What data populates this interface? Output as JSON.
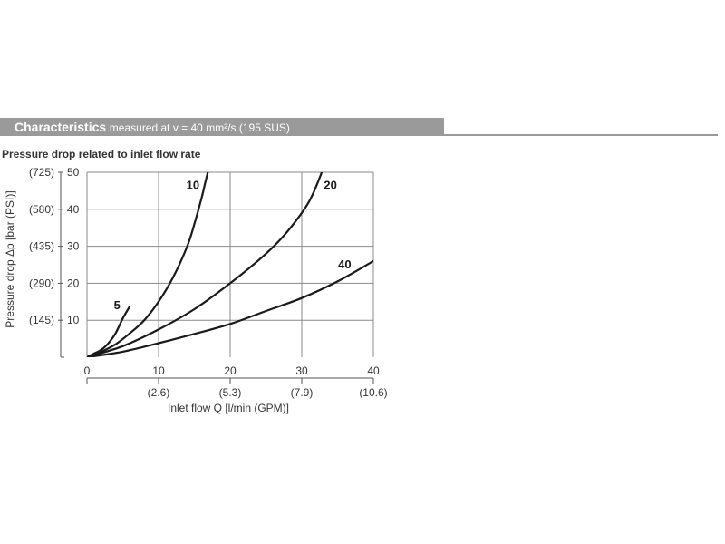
{
  "header": {
    "title": "Characteristics",
    "subtitle": "measured at v = 40 mm²/s (195 SUS)"
  },
  "chart_data": {
    "type": "line",
    "title": "Pressure drop related to inlet flow rate",
    "xlabel": "Inlet flow Q [l/min (GPM)]",
    "ylabel": "Pressure drop Δp [bar (PSI)]",
    "xlim": [
      0,
      40
    ],
    "ylim": [
      0,
      50
    ],
    "grid": true,
    "x_ticks": [
      "0",
      "10",
      "20",
      "30",
      "40"
    ],
    "x_ticks_secondary": [
      "(2.6)",
      "(5.3)",
      "(7.9)",
      "(10.6)"
    ],
    "y_ticks": [
      "10",
      "20",
      "30",
      "40",
      "50"
    ],
    "y_ticks_secondary": [
      "(145)",
      "(290)",
      "(435)",
      "(580)",
      "(725)"
    ],
    "series": [
      {
        "name": "5",
        "points": [
          [
            0,
            0
          ],
          [
            1,
            1
          ],
          [
            2,
            2
          ],
          [
            3,
            3.8
          ],
          [
            4,
            6.5
          ],
          [
            5,
            10.5
          ],
          [
            5.9,
            13.5
          ]
        ]
      },
      {
        "name": "10",
        "points": [
          [
            0,
            0
          ],
          [
            2,
            1.5
          ],
          [
            4,
            3.5
          ],
          [
            6,
            6.5
          ],
          [
            8,
            10
          ],
          [
            10,
            15
          ],
          [
            12,
            21.5
          ],
          [
            14,
            30
          ],
          [
            15,
            36
          ],
          [
            16,
            43
          ],
          [
            16.5,
            47
          ],
          [
            17,
            51
          ]
        ]
      },
      {
        "name": "20",
        "points": [
          [
            0,
            0
          ],
          [
            5,
            3
          ],
          [
            10,
            7.5
          ],
          [
            15,
            13
          ],
          [
            20,
            20
          ],
          [
            25,
            28
          ],
          [
            28,
            34
          ],
          [
            31,
            42
          ],
          [
            33,
            51
          ]
        ]
      },
      {
        "name": "40",
        "points": [
          [
            0,
            0
          ],
          [
            5,
            1.5
          ],
          [
            10,
            3.8
          ],
          [
            15,
            6.3
          ],
          [
            20,
            9
          ],
          [
            25,
            12.5
          ],
          [
            30,
            16
          ],
          [
            35,
            20.5
          ],
          [
            40,
            26
          ]
        ]
      }
    ]
  }
}
